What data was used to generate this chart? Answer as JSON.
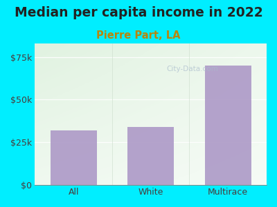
{
  "title": "Median per capita income in 2022",
  "subtitle": "Pierre Part, LA",
  "categories": [
    "All",
    "White",
    "Multirace"
  ],
  "values": [
    32000,
    34000,
    70000
  ],
  "bar_color": "#b09ec9",
  "title_fontsize": 13.5,
  "subtitle_fontsize": 10.5,
  "subtitle_color": "#b8860b",
  "tick_label_color": "#4a3a3a",
  "ylim": [
    0,
    83000
  ],
  "yticks": [
    0,
    25000,
    50000,
    75000
  ],
  "ytick_labels": [
    "$0",
    "$25k",
    "$50k",
    "$75k"
  ],
  "bg_color": "#00eeff",
  "watermark": "City-Data.com",
  "watermark_color": "#aabbcc"
}
